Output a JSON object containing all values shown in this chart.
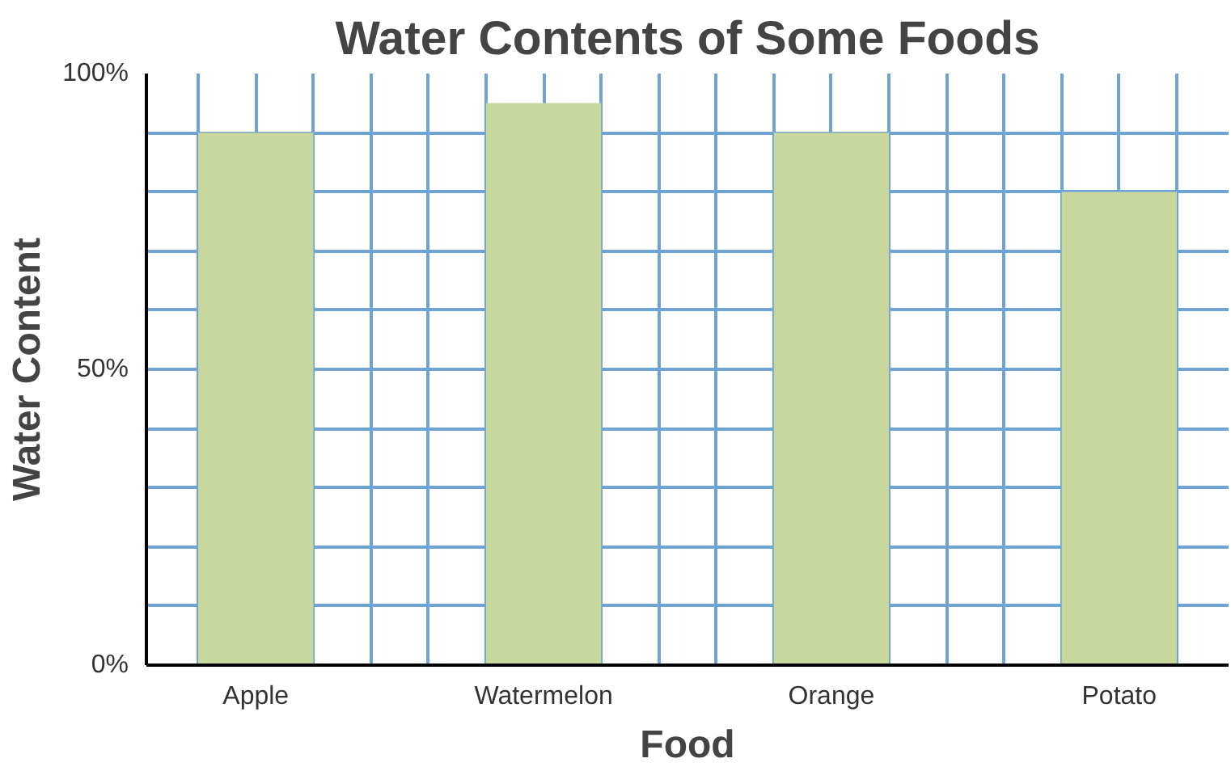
{
  "chart_data": {
    "type": "bar",
    "title": "Water Contents of Some Foods",
    "xlabel": "Food",
    "ylabel": "Water Content",
    "categories": [
      "Apple",
      "Watermelon",
      "Orange",
      "Potato"
    ],
    "values": [
      90,
      95,
      90,
      80
    ],
    "color": "#c8d79c",
    "ylim": [
      0,
      100
    ],
    "yticks": [
      {
        "value": 0,
        "label": "0%"
      },
      {
        "value": 10,
        "label": null
      },
      {
        "value": 20,
        "label": null
      },
      {
        "value": 30,
        "label": null
      },
      {
        "value": 40,
        "label": null
      },
      {
        "value": 50,
        "label": "50%"
      },
      {
        "value": 60,
        "label": null
      },
      {
        "value": 70,
        "label": null
      },
      {
        "value": 80,
        "label": null
      },
      {
        "value": 90,
        "label": null
      },
      {
        "value": 100,
        "label": "100%"
      }
    ],
    "grid": true
  }
}
